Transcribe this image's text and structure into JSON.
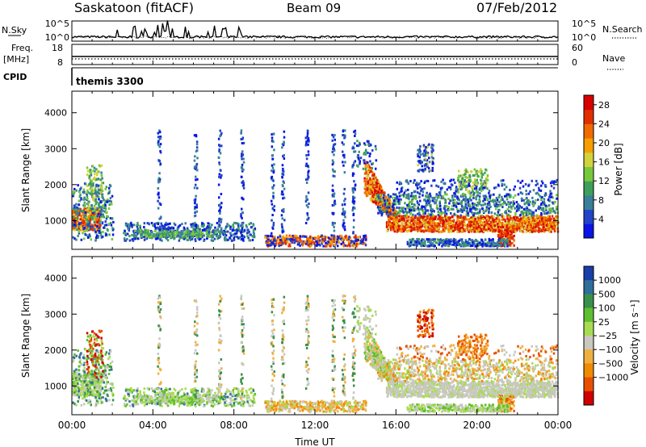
{
  "header": {
    "station": "Saskatoon (fitACF)",
    "beam": "Beam 09",
    "date": "07/Feb/2012"
  },
  "top_panels": {
    "nsky_label": "N.Sky",
    "nsky_ticks": [
      "10^5",
      "10^0"
    ],
    "nsearch_label": "N.Search",
    "nsearch_ticks": [
      "10^5",
      "10^0"
    ],
    "freq_label": "Freq.",
    "freq_unit": "[MHz]",
    "freq_ticks": [
      "18",
      "8"
    ],
    "nave_label": "Nave",
    "nave_ticks": [
      "60",
      "0"
    ],
    "cpid_label": "CPID",
    "cpid_value": "themis 3300"
  },
  "colors": {
    "power": [
      "#0a14e6",
      "#2244c8",
      "#3a7f9a",
      "#3f9f5a",
      "#78c83c",
      "#d2d23c",
      "#f5a000",
      "#f06a00",
      "#e03000",
      "#d80000"
    ],
    "velocity": [
      "#1a3ea8",
      "#2f6f9a",
      "#3a8f4a",
      "#5fbf30",
      "#a8dc50",
      "#c8c8c0",
      "#f0b040",
      "#f08a00",
      "#e85000",
      "#d00000"
    ]
  },
  "chart_data": [
    {
      "type": "heatmap",
      "name": "power",
      "ylabel": "Slant Range [km]",
      "yticks": [
        "1000",
        "2000",
        "3000",
        "4000"
      ],
      "ylim": [
        200,
        4600
      ],
      "xticks": [
        "00:00",
        "04:00",
        "08:00",
        "12:00",
        "16:00",
        "20:00",
        "00:00"
      ],
      "xlim_hours": [
        0,
        24
      ],
      "colorbar_label": "Power [dB]",
      "colorbar_ticks": [
        "4",
        "8",
        "12",
        "16",
        "20",
        "24",
        "28"
      ],
      "colorbar_range": [
        0,
        30
      ]
    },
    {
      "type": "heatmap",
      "name": "velocity",
      "ylabel": "Slant Range [km]",
      "yticks": [
        "1000",
        "2000",
        "3000",
        "4000"
      ],
      "ylim": [
        200,
        4600
      ],
      "xticks": [
        "00:00",
        "04:00",
        "08:00",
        "12:00",
        "16:00",
        "20:00",
        "00:00"
      ],
      "xlim_hours": [
        0,
        24
      ],
      "xlabel": "Time UT",
      "colorbar_label": "Velocity [m s⁻¹]",
      "colorbar_ticks": [
        "1000",
        "500",
        "100",
        "25",
        "−25",
        "−100",
        "−500",
        "−1000"
      ]
    }
  ]
}
